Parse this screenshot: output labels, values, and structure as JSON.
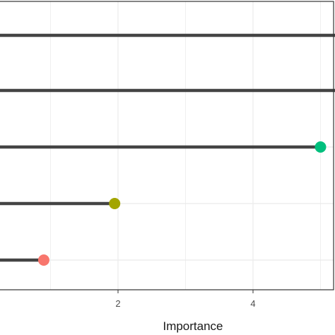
{
  "chart_data": {
    "type": "lollipop",
    "xlabel": "Importance",
    "x_ticks": [
      2,
      4
    ],
    "xlim": [
      -1.7,
      5.1
    ],
    "grid": true,
    "legend": "none",
    "series": [
      {
        "value": 6.0,
        "color": null
      },
      {
        "value": 6.0,
        "color": null
      },
      {
        "value": 5.0,
        "color": "#00BF7D"
      },
      {
        "value": 1.95,
        "color": "#A3A500"
      },
      {
        "value": 0.9,
        "color": "#F8766D"
      }
    ],
    "colors": {
      "stick": "#444444",
      "grid": "#ebebeb",
      "panel_border": "#333333"
    }
  }
}
